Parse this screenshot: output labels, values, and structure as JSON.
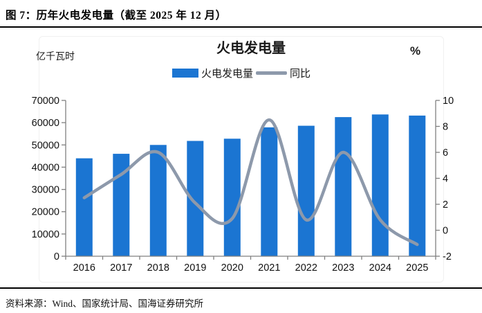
{
  "page": {
    "title": "图 7：历年火电发电量（截至 2025 年 12 月）",
    "source": "资料来源：Wind、国家统计局、国海证券研究所"
  },
  "chart": {
    "colors": {
      "bar": "#1b75d2",
      "line": "#8d99ab",
      "axis": "#7f7f7f",
      "tick_text": "#111111"
    }
  },
  "chart_data": {
    "type": "bar",
    "title": "火电发电量",
    "categories": [
      "2016",
      "2017",
      "2018",
      "2019",
      "2020",
      "2021",
      "2022",
      "2023",
      "2024",
      "2025"
    ],
    "series": [
      {
        "name": "火电发电量",
        "type": "bar",
        "axis": "left",
        "values": [
          44000,
          46000,
          50000,
          51800,
          52800,
          57900,
          58600,
          62500,
          63700,
          63200
        ]
      },
      {
        "name": "同比",
        "type": "line",
        "axis": "right",
        "values": [
          2.5,
          4.3,
          6.0,
          2.1,
          0.9,
          8.5,
          0.8,
          6.0,
          0.8,
          -1.1
        ]
      }
    ],
    "left_axis": {
      "label": "亿千瓦时",
      "min": 0,
      "max": 70000,
      "step": 10000
    },
    "right_axis": {
      "label": "%",
      "min": -2,
      "max": 10,
      "step": 2
    },
    "grid": false,
    "legend_position": "top-center"
  }
}
